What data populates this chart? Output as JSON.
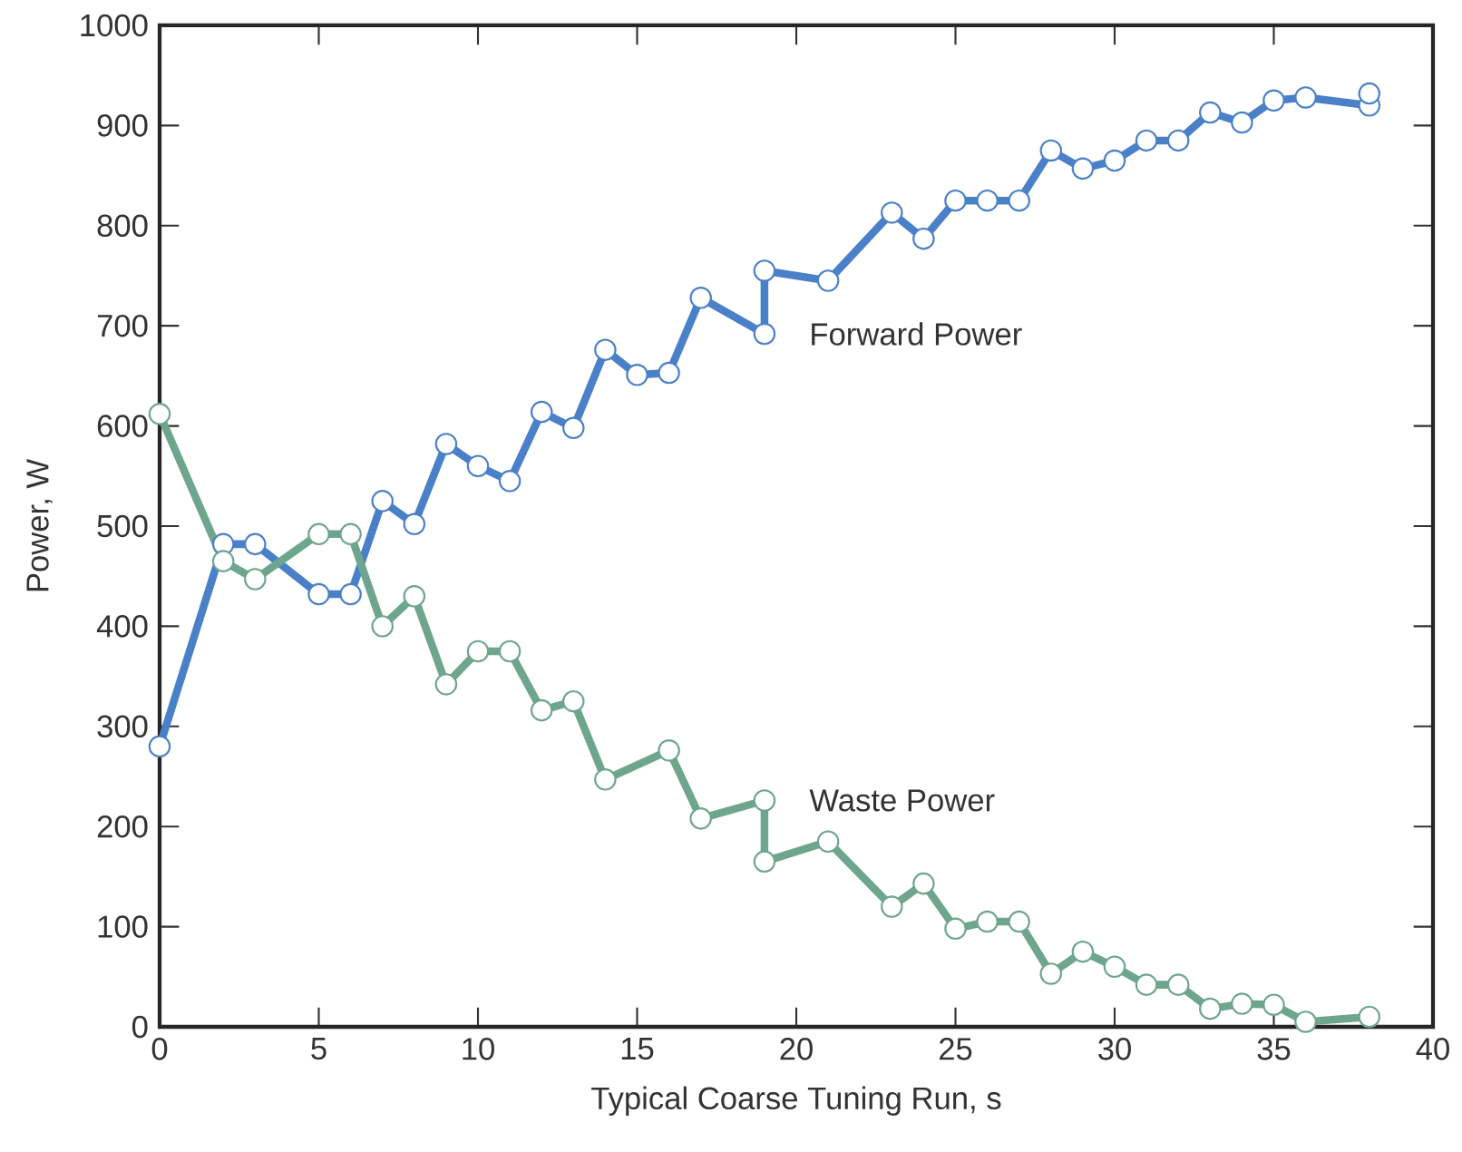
{
  "chart_data": {
    "type": "line",
    "xlabel": "Typical Coarse Tuning Run, s",
    "ylabel": "Power, W",
    "xlim": [
      0,
      40
    ],
    "ylim": [
      0,
      1000
    ],
    "xticks": [
      0,
      5,
      10,
      15,
      20,
      25,
      30,
      35,
      40
    ],
    "yticks": [
      0,
      100,
      200,
      300,
      400,
      500,
      600,
      700,
      800,
      900,
      1000
    ],
    "grid": false,
    "legend": false,
    "marker": "circle",
    "line_style": "solid",
    "series": [
      {
        "name": "Forward Power",
        "color": "#4a80c8",
        "x": [
          0,
          2,
          3,
          5,
          6,
          7,
          8,
          9,
          10,
          11,
          12,
          13,
          14,
          15,
          16,
          17,
          19,
          19,
          21,
          23,
          24,
          25,
          26,
          27,
          28,
          29,
          30,
          31,
          32,
          33,
          34,
          35,
          36,
          38,
          38
        ],
        "values": [
          280,
          482,
          482,
          432,
          432,
          525,
          502,
          582,
          560,
          545,
          614,
          598,
          676,
          651,
          653,
          728,
          692,
          755,
          745,
          813,
          787,
          825,
          825,
          825,
          875,
          857,
          865,
          885,
          885,
          913,
          903,
          925,
          928,
          920,
          932
        ]
      },
      {
        "name": "Waste Power",
        "color": "#6ea58f",
        "x": [
          0,
          2,
          3,
          5,
          6,
          7,
          8,
          9,
          10,
          11,
          12,
          13,
          14,
          16,
          17,
          19,
          19,
          21,
          23,
          24,
          25,
          26,
          27,
          28,
          29,
          30,
          31,
          32,
          33,
          34,
          35,
          36,
          38
        ],
        "values": [
          612,
          465,
          447,
          492,
          492,
          400,
          430,
          342,
          375,
          375,
          316,
          325,
          247,
          276,
          208,
          226,
          165,
          185,
          120,
          143,
          98,
          105,
          105,
          53,
          75,
          60,
          42,
          42,
          18,
          23,
          22,
          5,
          10
        ]
      }
    ]
  }
}
